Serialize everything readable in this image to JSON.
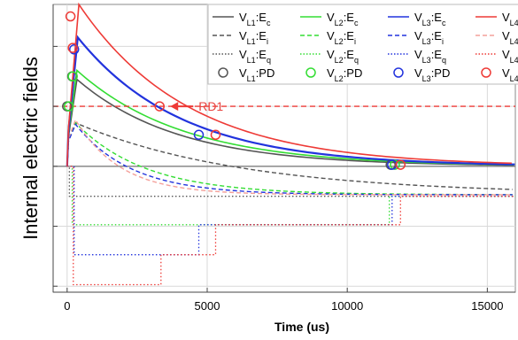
{
  "chart_data": {
    "type": "line",
    "title": "",
    "xlabel": "Time (us)",
    "ylabel": "Internal electric fields",
    "xlim": [
      -500,
      16000
    ],
    "ylim": [
      -4.2,
      5.4
    ],
    "x_ticks": [
      "0",
      "5000",
      "10000",
      "15000"
    ],
    "x_tick_values": [
      0,
      5000,
      10000,
      15000
    ],
    "y_ticks_labeled": false,
    "y_gridlines": [
      -4,
      -2,
      0,
      2,
      4
    ],
    "zero_line": 0,
    "grid": true,
    "legend_position": "top-right",
    "legend": [
      {
        "label": "V_L1:E_c",
        "sub": "L1",
        "suffix": "c",
        "color": "#555555",
        "dash": "solid"
      },
      {
        "label": "V_L2:E_c",
        "sub": "L2",
        "suffix": "c",
        "color": "#33dd33",
        "dash": "solid"
      },
      {
        "label": "V_L3:E_c",
        "sub": "L3",
        "suffix": "c",
        "color": "#2233dd",
        "dash": "solid"
      },
      {
        "label": "V_L4:E_c",
        "sub": "L4",
        "suffix": "c",
        "color": "#ee3a36",
        "dash": "solid"
      },
      {
        "label": "V_L1:E_i",
        "sub": "L1",
        "suffix": "i",
        "color": "#555555",
        "dash": "dashed"
      },
      {
        "label": "V_L2:E_i",
        "sub": "L2",
        "suffix": "i",
        "color": "#33dd33",
        "dash": "dashed"
      },
      {
        "label": "V_L3:E_i",
        "sub": "L3",
        "suffix": "i",
        "color": "#2233dd",
        "dash": "dashed"
      },
      {
        "label": "V_L4:E_i",
        "sub": "L4",
        "suffix": "i",
        "color": "#f4a09a",
        "dash": "dashed"
      },
      {
        "label": "V_L1:E_q",
        "sub": "L1",
        "suffix": "q",
        "color": "#555555",
        "dash": "dotted"
      },
      {
        "label": "V_L2:E_q",
        "sub": "L2",
        "suffix": "q",
        "color": "#33dd33",
        "dash": "dotted"
      },
      {
        "label": "V_L3:E_q",
        "sub": "L3",
        "suffix": "q",
        "color": "#2233dd",
        "dash": "dotted"
      },
      {
        "label": "V_L4:E_q",
        "sub": "L4",
        "suffix": "q",
        "color": "#ee3a36",
        "dash": "dotted"
      },
      {
        "label": "V_L1:PD",
        "sub": "L1",
        "suffix": "PD",
        "color": "#555555",
        "dash": "marker"
      },
      {
        "label": "V_L2:PD",
        "sub": "L2",
        "suffix": "PD",
        "color": "#33dd33",
        "dash": "marker"
      },
      {
        "label": "V_L3:PD",
        "sub": "L3",
        "suffix": "PD",
        "color": "#2233dd",
        "dash": "marker"
      },
      {
        "label": "V_L4:PD",
        "sub": "L4",
        "suffix": "PD",
        "color": "#ee3a36",
        "dash": "marker"
      }
    ],
    "series_Ec": [
      {
        "color": "#555555",
        "width": 1.6,
        "peak_t": 350,
        "peak": 2.9,
        "rise_t": 50,
        "rise_v": 1.0,
        "tau": 3600
      },
      {
        "color": "#33dd33",
        "width": 1.6,
        "peak_t": 350,
        "peak": 3.2,
        "rise_t": 50,
        "rise_v": 1.1,
        "tau": 3800
      },
      {
        "color": "#2233dd",
        "width": 2.2,
        "peak_t": 380,
        "peak": 4.3,
        "rise_t": 50,
        "rise_v": 1.2,
        "tau": 3700
      },
      {
        "color": "#ee3a36",
        "width": 1.6,
        "peak_t": 420,
        "peak": 5.4,
        "rise_t": 50,
        "rise_v": 1.3,
        "tau": 3900
      }
    ],
    "series_Ei": [
      {
        "color": "#555555",
        "peak": 1.45,
        "tau": 6000,
        "floor": -0.95
      },
      {
        "color": "#33dd33",
        "peak": 1.45,
        "tau": 2500,
        "floor": -0.95
      },
      {
        "color": "#2233dd",
        "peak": 1.4,
        "tau": 2000,
        "floor": -0.95
      },
      {
        "color": "#f4a09a",
        "peak": 1.55,
        "tau": 1600,
        "floor": -0.95
      }
    ],
    "series_Eq": [
      {
        "color": "#555555",
        "t_switch": [
          80,
          11700
        ],
        "levels": [
          -1.0,
          -1.0
        ]
      },
      {
        "color": "#33dd33",
        "t_switch": [
          180,
          11500
        ],
        "levels": [
          -1.95,
          -1.0
        ]
      },
      {
        "color": "#2233dd",
        "t_switch": [
          250,
          4700,
          11600
        ],
        "levels": [
          -2.95,
          -1.95,
          -1.0
        ]
      },
      {
        "color": "#ee3a36",
        "t_switch": [
          220,
          3350,
          5300,
          11900
        ],
        "levels": [
          -3.95,
          -2.95,
          -1.95,
          -1.0
        ]
      }
    ],
    "pd_markers": [
      {
        "color": "#555555",
        "points": [
          [
            0,
            2.0
          ],
          [
            180,
            3.0
          ],
          [
            11550,
            0.05
          ]
        ]
      },
      {
        "color": "#33dd33",
        "points": [
          [
            60,
            2.0
          ],
          [
            200,
            3.0
          ],
          [
            11700,
            0.05
          ]
        ]
      },
      {
        "color": "#2233dd",
        "points": [
          [
            250,
            3.9
          ],
          [
            4700,
            1.05
          ],
          [
            11600,
            0.05
          ]
        ]
      },
      {
        "color": "#ee3a36",
        "points": [
          [
            120,
            5.0
          ],
          [
            200,
            3.95
          ],
          [
            3300,
            2.0
          ],
          [
            5300,
            1.05
          ],
          [
            11900,
            0.05
          ]
        ]
      }
    ],
    "reference_line": {
      "y": 2.0,
      "color": "#ee3a36",
      "dash": "dashed"
    },
    "annotations": [
      {
        "text": "RD1",
        "color": "#ee3a36",
        "arrow_to": [
          3300,
          2.0
        ]
      }
    ]
  }
}
